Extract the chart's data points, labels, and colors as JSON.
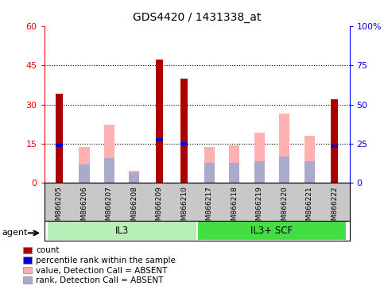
{
  "title": "GDS4420 / 1431338_at",
  "categories": [
    "GSM866205",
    "GSM866206",
    "GSM866207",
    "GSM866208",
    "GSM866209",
    "GSM866210",
    "GSM866217",
    "GSM866218",
    "GSM866219",
    "GSM866220",
    "GSM866221",
    "GSM866222"
  ],
  "groups": [
    {
      "label": "IL3",
      "start": 0,
      "end": 6,
      "color": "#B8EEB8"
    },
    {
      "label": "IL3+ SCF",
      "start": 6,
      "end": 12,
      "color": "#44DD44"
    }
  ],
  "red_bars": [
    34,
    0,
    0,
    0,
    47,
    40,
    0,
    0,
    0,
    0,
    0,
    32
  ],
  "blue_marks": [
    14.5,
    0,
    0,
    0,
    16.5,
    15,
    0,
    0,
    0,
    0,
    0,
    14
  ],
  "pink_bars": [
    0,
    23,
    37,
    8,
    0,
    0,
    23,
    24,
    32,
    44,
    30,
    0
  ],
  "lavender_marks": [
    0,
    12,
    16,
    7,
    0,
    0,
    13,
    13,
    14,
    17,
    14,
    0
  ],
  "ylim_left": [
    0,
    60
  ],
  "ylim_right": [
    0,
    100
  ],
  "yticks_left": [
    0,
    15,
    30,
    45,
    60
  ],
  "yticks_right": [
    0,
    25,
    50,
    75,
    100
  ],
  "ytick_labels_right": [
    "0",
    "25",
    "50",
    "75",
    "100%"
  ],
  "red_color": "#AA0000",
  "pink_color": "#FFB0B0",
  "blue_color": "#0000CC",
  "lavender_color": "#AAAACC",
  "axis_bg": "#C8C8C8",
  "legend_items": [
    {
      "label": "count",
      "color": "#AA0000"
    },
    {
      "label": "percentile rank within the sample",
      "color": "#0000CC"
    },
    {
      "label": "value, Detection Call = ABSENT",
      "color": "#FFB0B0"
    },
    {
      "label": "rank, Detection Call = ABSENT",
      "color": "#AAAACC"
    }
  ]
}
